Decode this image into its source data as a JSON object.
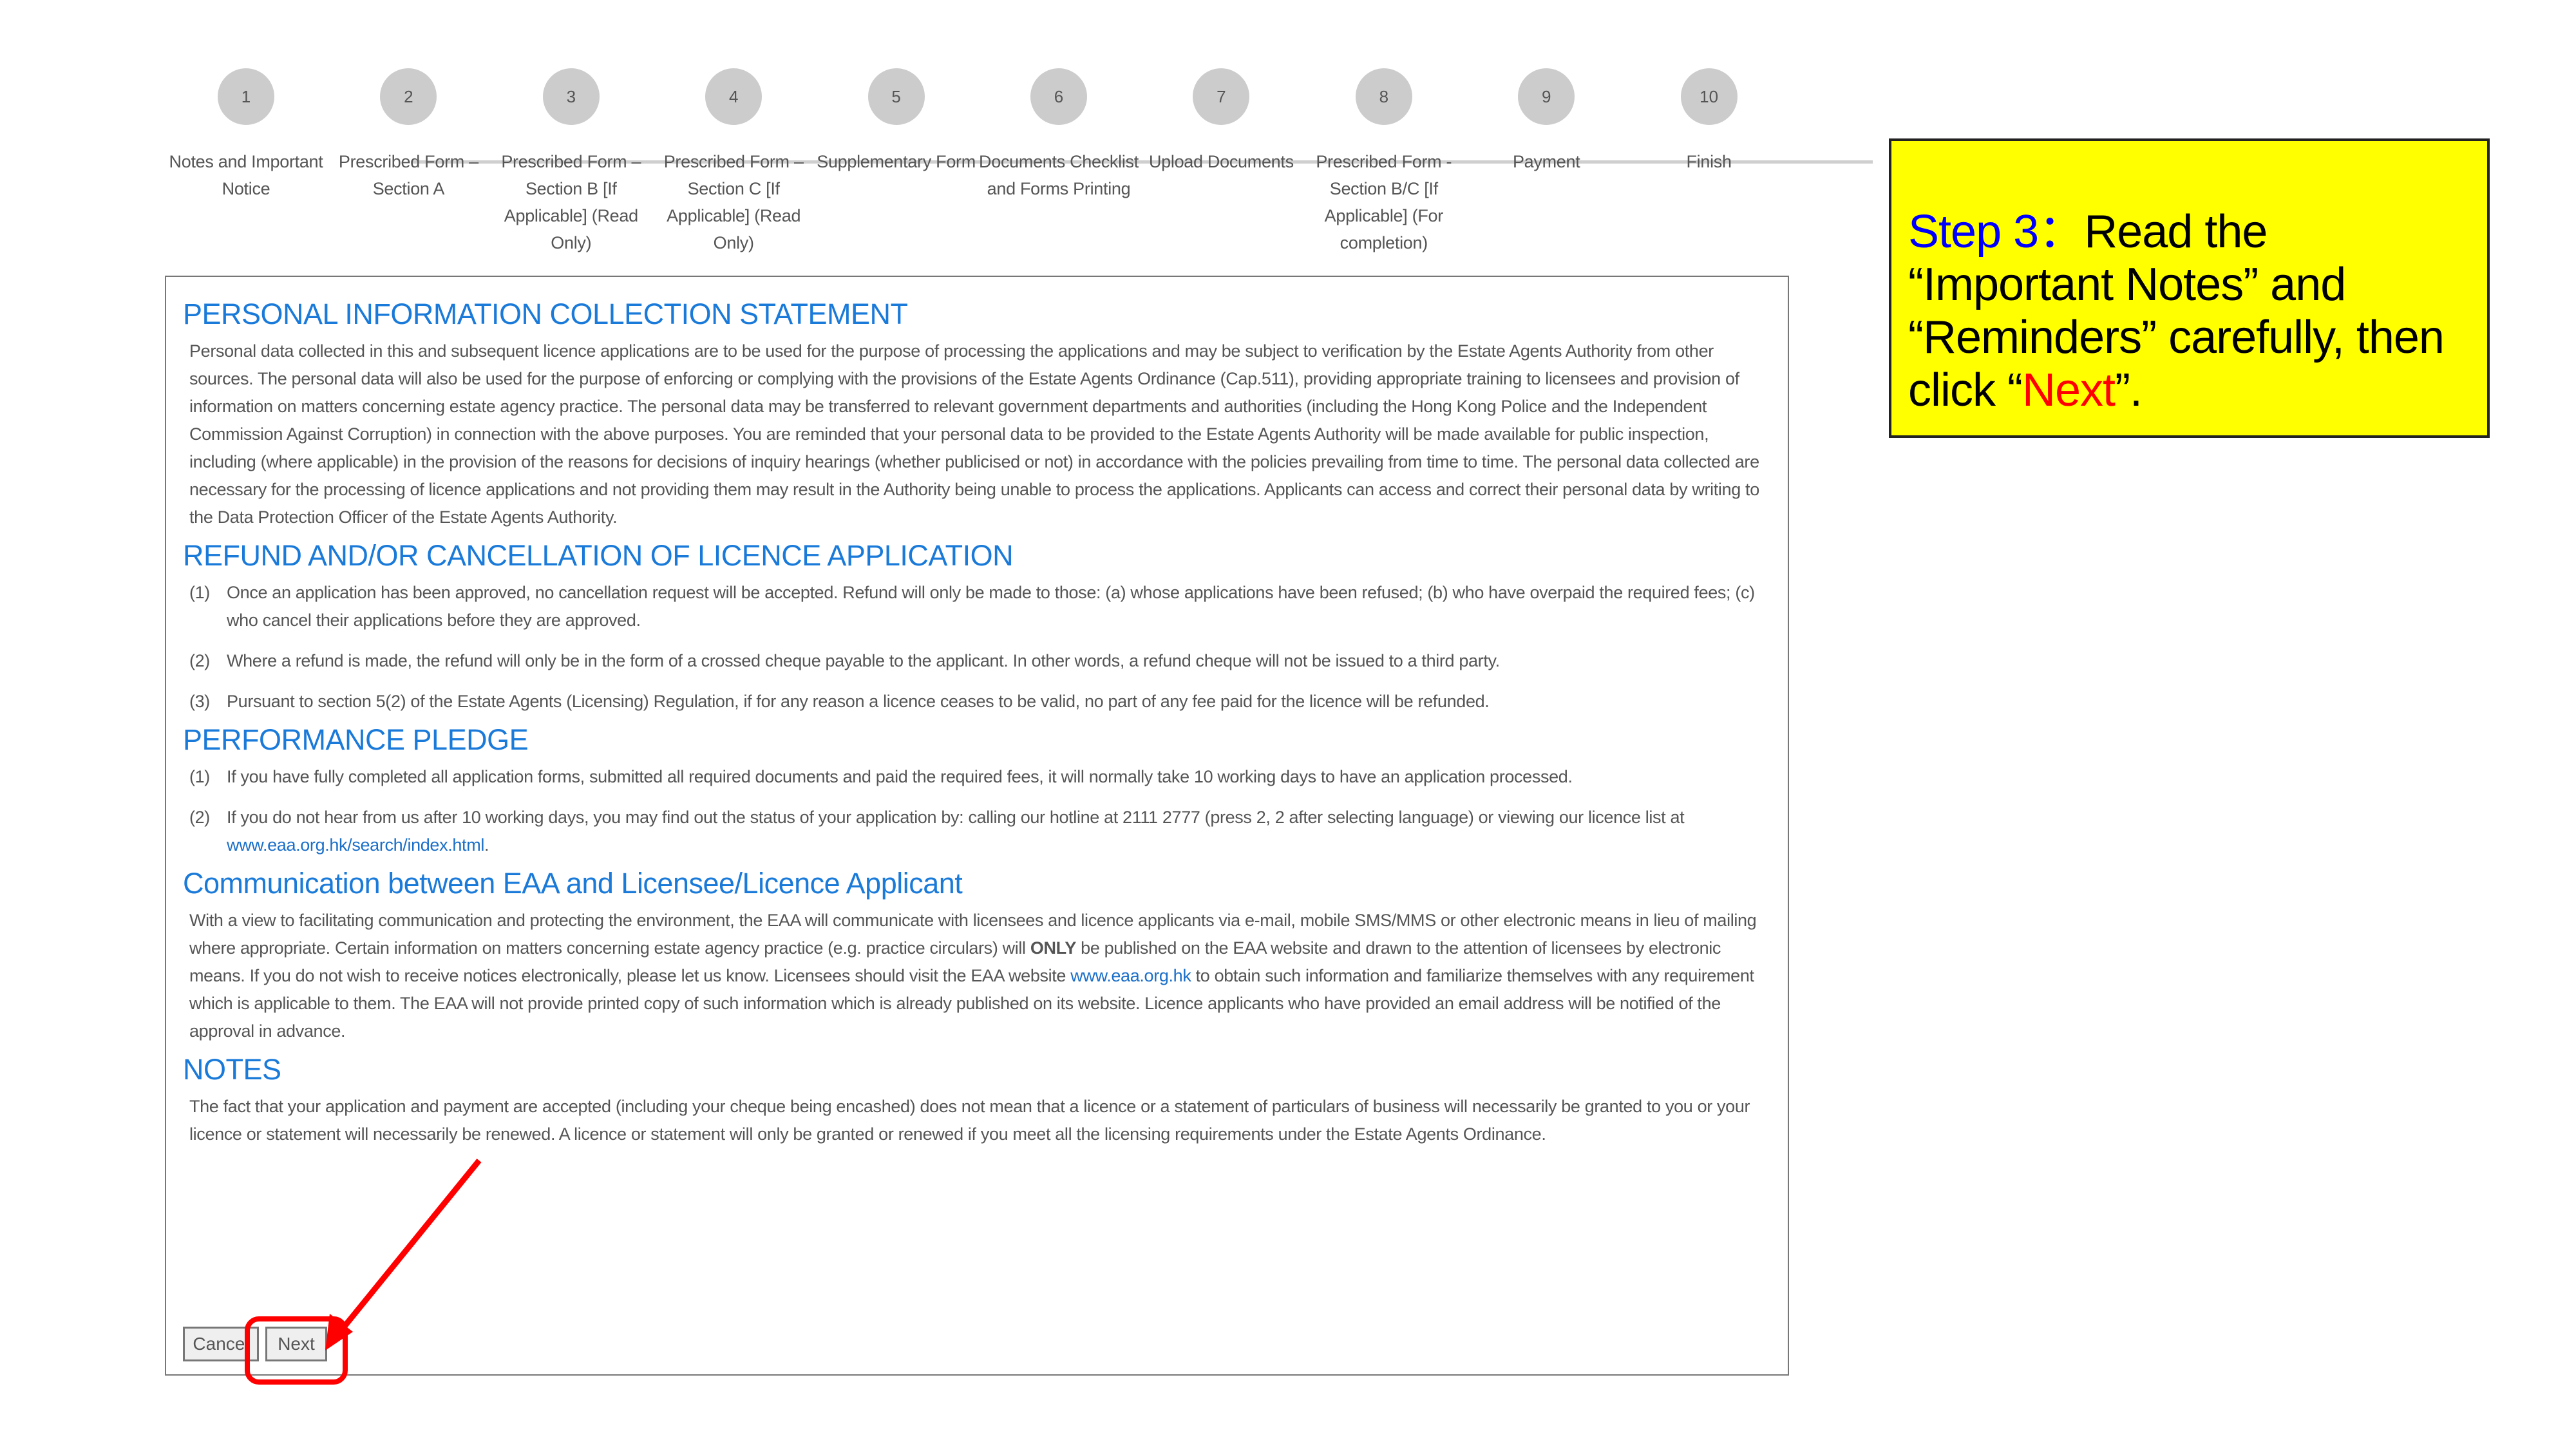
{
  "stepper": {
    "steps": [
      {
        "number": "1",
        "label": "Notes and Important Notice"
      },
      {
        "number": "2",
        "label": "Prescribed Form – Section A"
      },
      {
        "number": "3",
        "label": "Prescribed Form – Section B [If Applicable] (Read Only)"
      },
      {
        "number": "4",
        "label": "Prescribed Form – Section C [If Applicable] (Read Only)"
      },
      {
        "number": "5",
        "label": "Supplementary Form"
      },
      {
        "number": "6",
        "label": "Documents Checklist and Forms Printing"
      },
      {
        "number": "7",
        "label": "Upload Documents"
      },
      {
        "number": "8",
        "label": "Prescribed Form - Section B/C [If Applicable] (For completion)"
      },
      {
        "number": "9",
        "label": "Payment"
      },
      {
        "number": "10",
        "label": "Finish"
      }
    ],
    "circle_color": "#cccccc"
  },
  "pics": {
    "heading": "PERSONAL INFORMATION COLLECTION STATEMENT",
    "body": "Personal data collected in this and subsequent licence applications are to be used for the purpose of processing the applications and may be subject to verification by the Estate Agents Authority from other sources. The personal data will also be used for the purpose of enforcing or complying with the provisions of the Estate Agents Ordinance (Cap.511), providing appropriate training to licensees and provision of information on matters concerning estate agency practice. The personal data may be transferred to relevant government departments and authorities (including the Hong Kong Police and the Independent Commission Against Corruption) in connection with the above purposes. You are reminded that your personal data to be provided to the Estate Agents Authority will be made available for public inspection, including (where applicable) in the provision of the reasons for decisions of inquiry hearings (whether publicised or not) in accordance with the policies prevailing from time to time. The personal data collected are necessary for the processing of licence applications and not providing them may result in the Authority being unable to process the applications. Applicants can access and correct their personal data by writing to the Data Protection Officer of the Estate Agents Authority."
  },
  "refund": {
    "heading": "REFUND AND/OR CANCELLATION OF LICENCE APPLICATION",
    "items": [
      {
        "num": "(1)",
        "text": "Once an application has been approved, no cancellation request will be accepted. Refund will only be made to those: (a) whose applications have been refused; (b) who have overpaid the required fees; (c) who cancel their applications before they are approved."
      },
      {
        "num": "(2)",
        "text": "Where a refund is made, the refund will only be in the form of a crossed cheque payable to the applicant. In other words, a refund cheque will not be issued to a third party."
      },
      {
        "num": "(3)",
        "text": "Pursuant to section 5(2) of the Estate Agents (Licensing) Regulation, if for any reason a licence ceases to be valid, no part of any fee paid for the licence will be refunded."
      }
    ]
  },
  "pledge": {
    "heading": "PERFORMANCE PLEDGE",
    "item1_num": "(1)",
    "item1_text": "If you have fully completed all application forms, submitted all required documents and paid the required fees, it will normally take 10 working days to have an application processed.",
    "item2_num": "(2)",
    "item2_text": "If you do not hear from us after 10 working days, you may find out the status of your application by: calling our hotline at 2111 2777 (press 2, 2 after selecting language) or viewing our licence list at ",
    "item2_link": "www.eaa.org.hk/search/index.html",
    "item2_end": "."
  },
  "communication": {
    "heading": "Communication between EAA and Licensee/Licence Applicant",
    "body_start": "With a view to facilitating communication and protecting the environment, the EAA will communicate with licensees and licence applicants via e-mail, mobile SMS/MMS or other electronic means in lieu of mailing where appropriate. Certain information on matters concerning estate agency practice (e.g. practice circulars) will ",
    "body_bold": "ONLY",
    "body_mid": " be published on the EAA website and drawn to the attention of licensees by electronic means. If you do not wish to receive notices electronically, please let us know. Licensees should visit the EAA website ",
    "body_link": "www.eaa.org.hk",
    "body_end": " to obtain such information and familiarize themselves with any requirement which is applicable to them. The EAA will not provide printed copy of such information which is already published on its website. Licence applicants who have provided an email address will be notified of the approval in advance."
  },
  "notes": {
    "heading": "NOTES",
    "body": "The fact that your application and payment are accepted (including your cheque being encashed) does not mean that a licence or a statement of particulars of business will necessarily be granted to you or your licence or statement will necessarily be renewed. A licence or statement will only be granted or renewed if you meet all the licensing requirements under the Estate Agents Ordinance."
  },
  "buttons": {
    "cancel": "Cancel",
    "next": "Next"
  },
  "callout": {
    "step": "Step 3",
    "colon": "：",
    "text_before": "Read the “Important Notes” and “Reminders” carefully, then click “",
    "highlight": "Next",
    "text_after": "”.",
    "background": "#ffff00",
    "step_color": "#0000ff",
    "highlight_color": "#ff0000"
  },
  "annotation": {
    "color": "#ff0000"
  }
}
